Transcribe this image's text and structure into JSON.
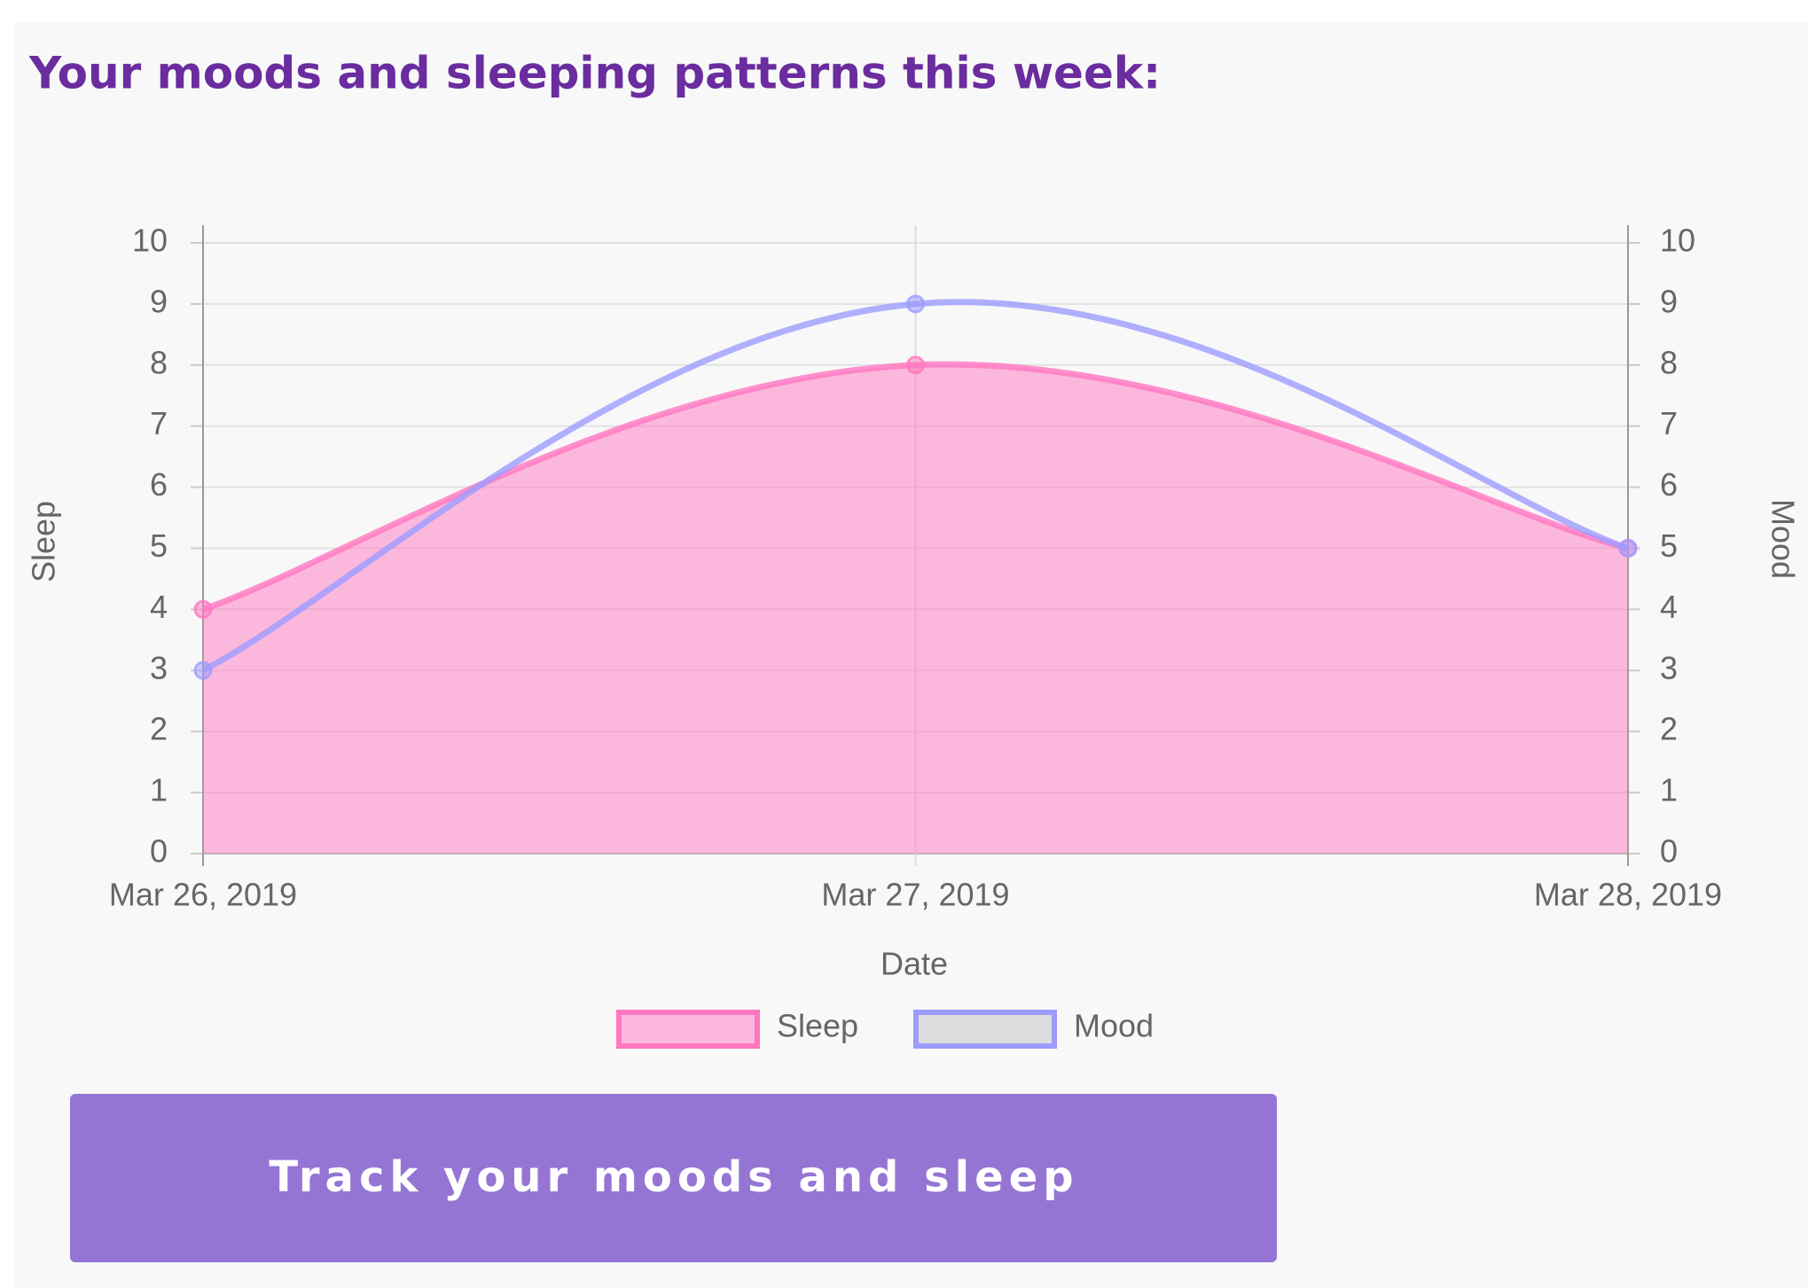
{
  "chart_data": {
    "type": "line",
    "title": "Your moods and sleeping patterns this week:",
    "xlabel": "Date",
    "ylabel": "Sleep",
    "y2label": "Mood",
    "categories": [
      "Mar 26, 2019",
      "Mar 27, 2019",
      "Mar 28, 2019"
    ],
    "series": [
      {
        "name": "Sleep",
        "color": "#ff77c0",
        "fill": true,
        "values": [
          4,
          8,
          5
        ]
      },
      {
        "name": "Mood",
        "color": "#9c9cff",
        "fill": false,
        "axis": "y2",
        "values": [
          3,
          9,
          5
        ]
      }
    ],
    "ylim": [
      0,
      10
    ],
    "yticks": [
      0,
      1,
      2,
      3,
      4,
      5,
      6,
      7,
      8,
      9,
      10
    ],
    "y2lim": [
      0,
      10
    ],
    "y2ticks": [
      0,
      1,
      2,
      3,
      4,
      5,
      6,
      7,
      8,
      9,
      10
    ],
    "grid": true,
    "legend": "bottom"
  },
  "button": {
    "label": "Track your moods and sleep"
  }
}
